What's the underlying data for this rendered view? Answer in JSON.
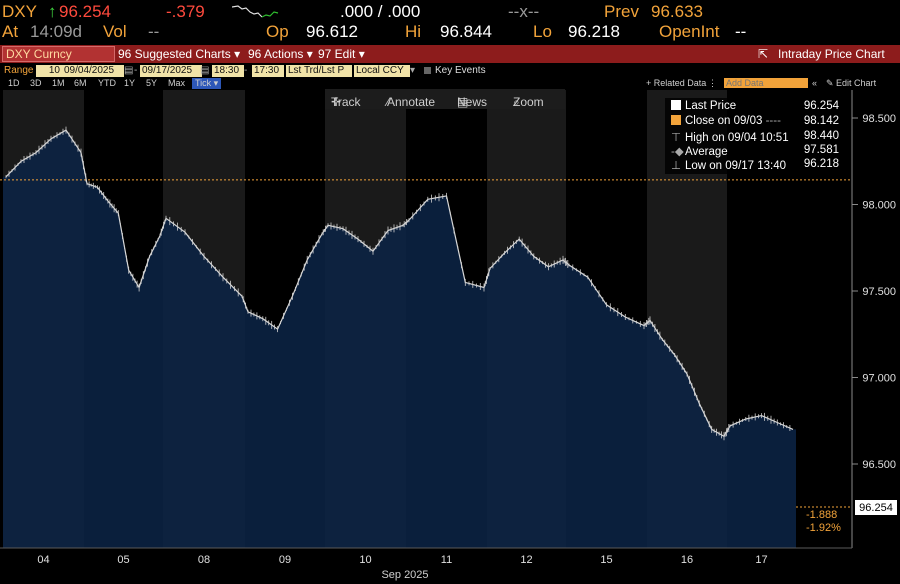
{
  "quote": {
    "symbol": "DXY",
    "arrow": "↑",
    "last": "96.254",
    "change": "-.379",
    "bidask": ".000 / .000",
    "size": "--x--",
    "prev_label": "Prev",
    "prev": "96.633",
    "time_prefix": "At",
    "time": "14:09d",
    "vol_label": "Vol",
    "vol": "--",
    "op_label": "Op",
    "op": "96.612",
    "hi_label": "Hi",
    "hi": "96.844",
    "lo_label": "Lo",
    "lo": "96.218",
    "openint_label": "OpenInt",
    "openint": "--"
  },
  "toolbar": {
    "ticker": "DXY Curncy",
    "suggested": "96 Suggested Charts",
    "actions": "96 Actions",
    "edit": "97 Edit",
    "intraday": "Intraday Price Chart"
  },
  "range_bar": {
    "range_label": "Range",
    "period": "10",
    "start_date": "09/04/2025",
    "end_date": "09/17/2025",
    "start_time": "18:30",
    "end_time": "17:30",
    "price_type": "Lst Trd/Lst P",
    "currency": "Local CCY",
    "key_events": "Key Events"
  },
  "period_bar": {
    "periods": [
      "1D",
      "3D",
      "1M",
      "6M",
      "YTD",
      "1Y",
      "5Y",
      "Max"
    ],
    "tick_button": "Tick",
    "related": "+ Related Data",
    "add_data_placeholder": "Add Data",
    "edit_chart": "Edit Chart"
  },
  "tools": {
    "track": "Track",
    "annotate": "Annotate",
    "news": "News",
    "zoom": "Zoom"
  },
  "legend": {
    "last_label": "Last Price",
    "last_value": "96.254",
    "close_label": "Close on 09/03",
    "close_value": "98.142",
    "high_label": "High on 09/04 10:51",
    "high_value": "98.440",
    "avg_label": "Average",
    "avg_value": "97.581",
    "low_label": "Low on 09/17 13:40",
    "low_value": "96.218"
  },
  "colors": {
    "area_fill": "#0c2446",
    "price_line": "#d8d8d8",
    "shade": "#1a1a1a",
    "close_line": "#f2a33a",
    "orange": "#f2a33a",
    "header_bar": "#8d1c1c"
  },
  "chart_data": {
    "type": "area",
    "title": "",
    "xlabel": "Sep 2025",
    "ylabel": "",
    "ylim": [
      96.15,
      98.66
    ],
    "yticks": [
      "98.500",
      "98.000",
      "97.500",
      "97.000",
      "96.500"
    ],
    "grid": false,
    "legend_position": "top-right",
    "days": [
      "04",
      "05",
      "08",
      "09",
      "10",
      "11",
      "12",
      "15",
      "16",
      "17"
    ],
    "x_month": "Sep 2025",
    "series": [
      {
        "name": "Last Price",
        "x": [
          "09/04",
          "09/04",
          "09/04",
          "09/04",
          "09/04",
          "09/04",
          "09/05",
          "09/05",
          "09/05",
          "09/05",
          "09/05",
          "09/05",
          "09/05",
          "09/05",
          "09/08",
          "09/08",
          "09/08",
          "09/08",
          "09/08",
          "09/09",
          "09/09",
          "09/09",
          "09/09",
          "09/09",
          "09/09",
          "09/10",
          "09/10",
          "09/10",
          "09/10",
          "09/10",
          "09/10",
          "09/11",
          "09/11",
          "09/11",
          "09/11",
          "09/11",
          "09/12",
          "09/12",
          "09/12",
          "09/12",
          "09/12",
          "09/12",
          "09/15",
          "09/15",
          "09/15",
          "09/15",
          "09/15",
          "09/16",
          "09/16",
          "09/16",
          "09/16",
          "09/16",
          "09/16",
          "09/16",
          "09/17",
          "09/17",
          "09/17",
          "09/17",
          "09/17"
        ],
        "values": [
          98.16,
          98.25,
          98.3,
          98.38,
          98.43,
          98.3,
          98.12,
          98.1,
          98.02,
          97.95,
          97.62,
          97.52,
          97.7,
          97.82,
          97.92,
          97.84,
          97.7,
          97.58,
          97.47,
          97.38,
          97.34,
          97.28,
          97.47,
          97.68,
          97.83,
          97.88,
          97.86,
          97.8,
          97.73,
          97.85,
          97.88,
          97.91,
          98.03,
          98.05,
          97.55,
          97.52,
          97.63,
          97.72,
          97.8,
          97.7,
          97.64,
          97.68,
          97.65,
          97.58,
          97.42,
          97.35,
          97.3,
          97.33,
          97.22,
          97.13,
          97.02,
          96.85,
          96.7,
          96.66,
          96.72,
          96.76,
          96.78,
          96.74,
          96.7
        ]
      }
    ],
    "reference_lines": [
      {
        "label": "Close on 09/03",
        "value": 98.142
      }
    ],
    "annotations": {
      "last_value": "96.254",
      "change": "-1.888",
      "change_pct": "-1.92%"
    }
  }
}
